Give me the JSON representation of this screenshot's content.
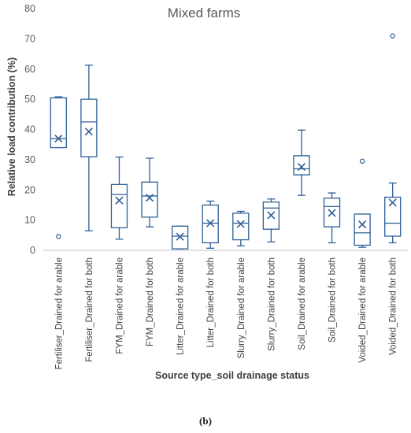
{
  "chart_data": {
    "type": "box",
    "title": "Mixed farms",
    "xlabel": "Source type_soil drainage status",
    "ylabel": "Relative load contribution (%)",
    "ylim": [
      0,
      80
    ],
    "yticks": [
      0,
      10,
      20,
      30,
      40,
      50,
      60,
      70,
      80
    ],
    "grid": false,
    "legend": "none",
    "color": "#2e5f98",
    "categories": [
      "Fertiliser_Drained for arable",
      "Fertiliser_Drained for both",
      "FYM_Drained for arable",
      "FYM_Drained for both",
      "Litter_Drained for arable",
      "Litter_Drained for both",
      "Slurry_Drained for arable",
      "Slurry_Drained for both",
      "Soil_Drained for arable",
      "Soil_Drained for both",
      "Voided_Drained for arable",
      "Voided_Drained for both"
    ],
    "boxes": [
      {
        "min": 34.0,
        "q1": 34.0,
        "median": 37.0,
        "q3": 50.5,
        "max": 50.8,
        "mean": 37.0,
        "outliers": [
          4.6
        ]
      },
      {
        "min": 6.5,
        "q1": 31.0,
        "median": 42.5,
        "q3": 50.0,
        "max": 61.3,
        "mean": 39.3,
        "outliers": []
      },
      {
        "min": 3.7,
        "q1": 7.5,
        "median": 18.5,
        "q3": 21.8,
        "max": 30.9,
        "mean": 16.5,
        "outliers": []
      },
      {
        "min": 7.8,
        "q1": 11.0,
        "median": 18.0,
        "q3": 22.6,
        "max": 30.5,
        "mean": 17.4,
        "outliers": []
      },
      {
        "min": 0.5,
        "q1": 0.5,
        "median": 4.7,
        "q3": 8.0,
        "max": 8.0,
        "mean": 4.5,
        "outliers": []
      },
      {
        "min": 0.7,
        "q1": 2.5,
        "median": 9.0,
        "q3": 15.0,
        "max": 16.3,
        "mean": 9.0,
        "outliers": []
      },
      {
        "min": 1.5,
        "q1": 3.5,
        "median": 9.0,
        "q3": 12.3,
        "max": 12.9,
        "mean": 8.7,
        "outliers": []
      },
      {
        "min": 2.8,
        "q1": 7.0,
        "median": 14.0,
        "q3": 16.0,
        "max": 17.0,
        "mean": 11.6,
        "outliers": []
      },
      {
        "min": 18.2,
        "q1": 25.0,
        "median": 27.0,
        "q3": 31.3,
        "max": 39.8,
        "mean": 27.6,
        "outliers": []
      },
      {
        "min": 2.5,
        "q1": 7.8,
        "median": 14.5,
        "q3": 17.3,
        "max": 19.0,
        "mean": 12.4,
        "outliers": []
      },
      {
        "min": 1.0,
        "q1": 1.7,
        "median": 5.8,
        "q3": 12.0,
        "max": 12.0,
        "mean": 8.6,
        "outliers": [
          29.5
        ]
      },
      {
        "min": 2.5,
        "q1": 4.7,
        "median": 9.0,
        "q3": 17.6,
        "max": 22.3,
        "mean": 15.8,
        "outliers": [
          71.0
        ]
      }
    ]
  },
  "caption": "(b)"
}
